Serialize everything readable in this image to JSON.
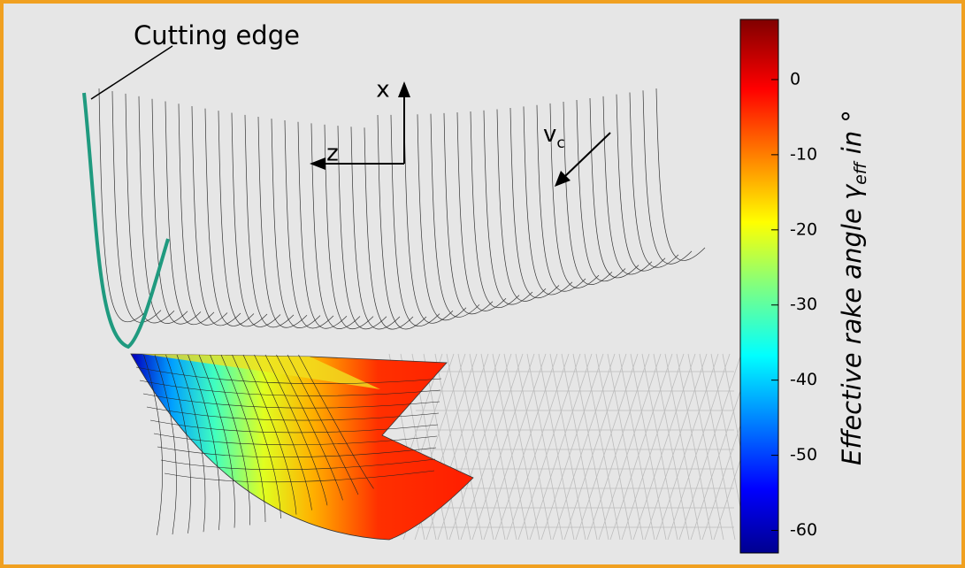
{
  "figure": {
    "annotations": {
      "cutting_edge": "Cutting edge",
      "x_axis": "x",
      "z_axis": "z",
      "velocity": "v",
      "velocity_sub": "c"
    },
    "colorbar": {
      "label": "Effective rake angle ",
      "label_symbol": "γ",
      "label_sub": "eff",
      "label_end": " in °",
      "lim": [
        -63,
        8
      ],
      "ticks": [
        0,
        -10,
        -20,
        -30,
        -40,
        -50,
        -60
      ]
    }
  }
}
